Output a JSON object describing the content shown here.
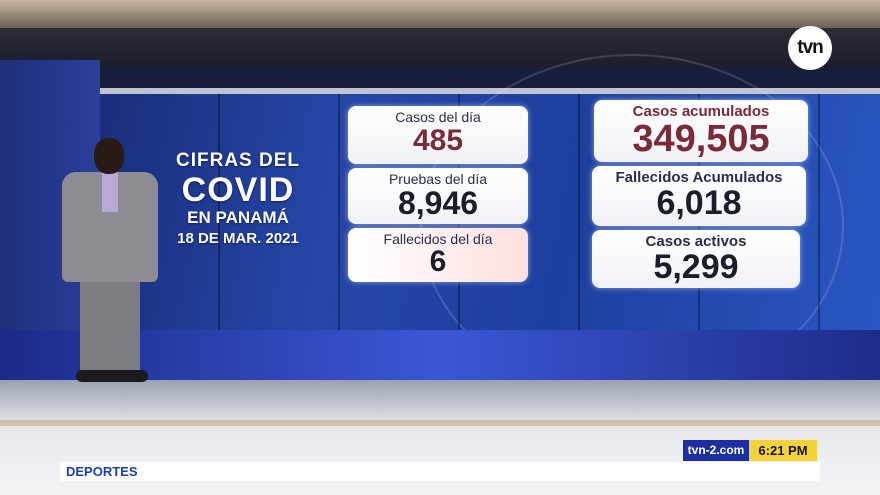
{
  "channel": {
    "logo": "tvn",
    "website": "tvn-2.com",
    "time": "6:21 PM",
    "lower_third": "DEPORTES"
  },
  "title": {
    "line1": "CIFRAS DEL",
    "line2": "COVID",
    "line3": "EN PANAMÁ",
    "date": "18 DE MAR. 2021"
  },
  "stats": {
    "casos_dia": {
      "label": "Casos del día",
      "value": "485"
    },
    "pruebas_dia": {
      "label": "Pruebas del día",
      "value": "8,946"
    },
    "fallecidos_dia": {
      "label": "Fallecidos del día",
      "value": "6"
    },
    "casos_acumulados": {
      "label": "Casos acumulados",
      "value": "349,505"
    },
    "fallecidos_acumulados": {
      "label": "Fallecidos Acumulados",
      "value": "6,018"
    },
    "casos_activos": {
      "label": "Casos activos",
      "value": "5,299"
    }
  },
  "colors": {
    "accent_red": "#7a2a38",
    "brand_blue": "#1d2fa0",
    "time_yellow": "#f6d23a"
  }
}
